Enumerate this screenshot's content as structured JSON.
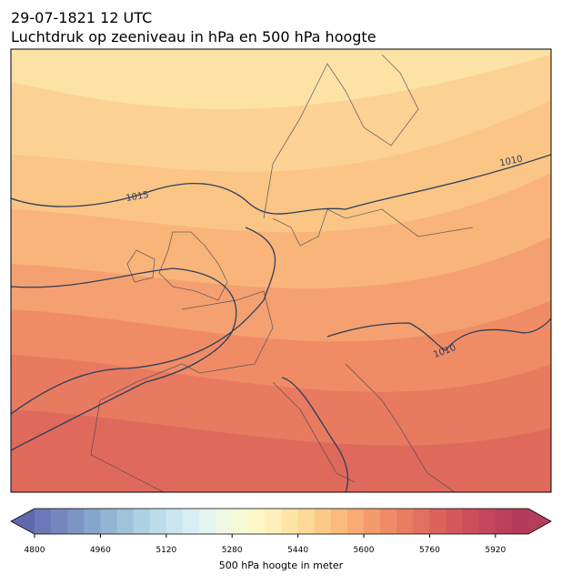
{
  "header": {
    "title_line1": "29-07-1821 12 UTC",
    "title_line2": "Luchtdruk op zeeniveau in hPa en 500 hPa hoogte"
  },
  "map": {
    "contour_labels": [
      "1015",
      "1010",
      "1010"
    ]
  },
  "colorbar": {
    "label": "500 hPa hoogte in meter",
    "clim": [
      4800,
      6000
    ],
    "ticks": [
      4800,
      4960,
      5120,
      5280,
      5440,
      5600,
      5760,
      5920
    ],
    "under_color": "#5d69ac",
    "over_color": "#b23f5a",
    "colors": [
      "#6c79b8",
      "#7487bd",
      "#7c95c3",
      "#86a5cb",
      "#92b5d3",
      "#9fc3da",
      "#add0e2",
      "#bcdcea",
      "#cae6f0",
      "#d8eef2",
      "#e4f4ef",
      "#eef8e2",
      "#f7fad6",
      "#fdf7c8",
      "#fef0b8",
      "#fee5a6",
      "#fdd896",
      "#fcca88",
      "#fbbb7c",
      "#f8ab72",
      "#f49b6c",
      "#ef8c66",
      "#e97d62",
      "#e2705e",
      "#db635c",
      "#d4585b",
      "#cc4e5a",
      "#c3465a",
      "#bb405a",
      "#b43b59"
    ]
  }
}
